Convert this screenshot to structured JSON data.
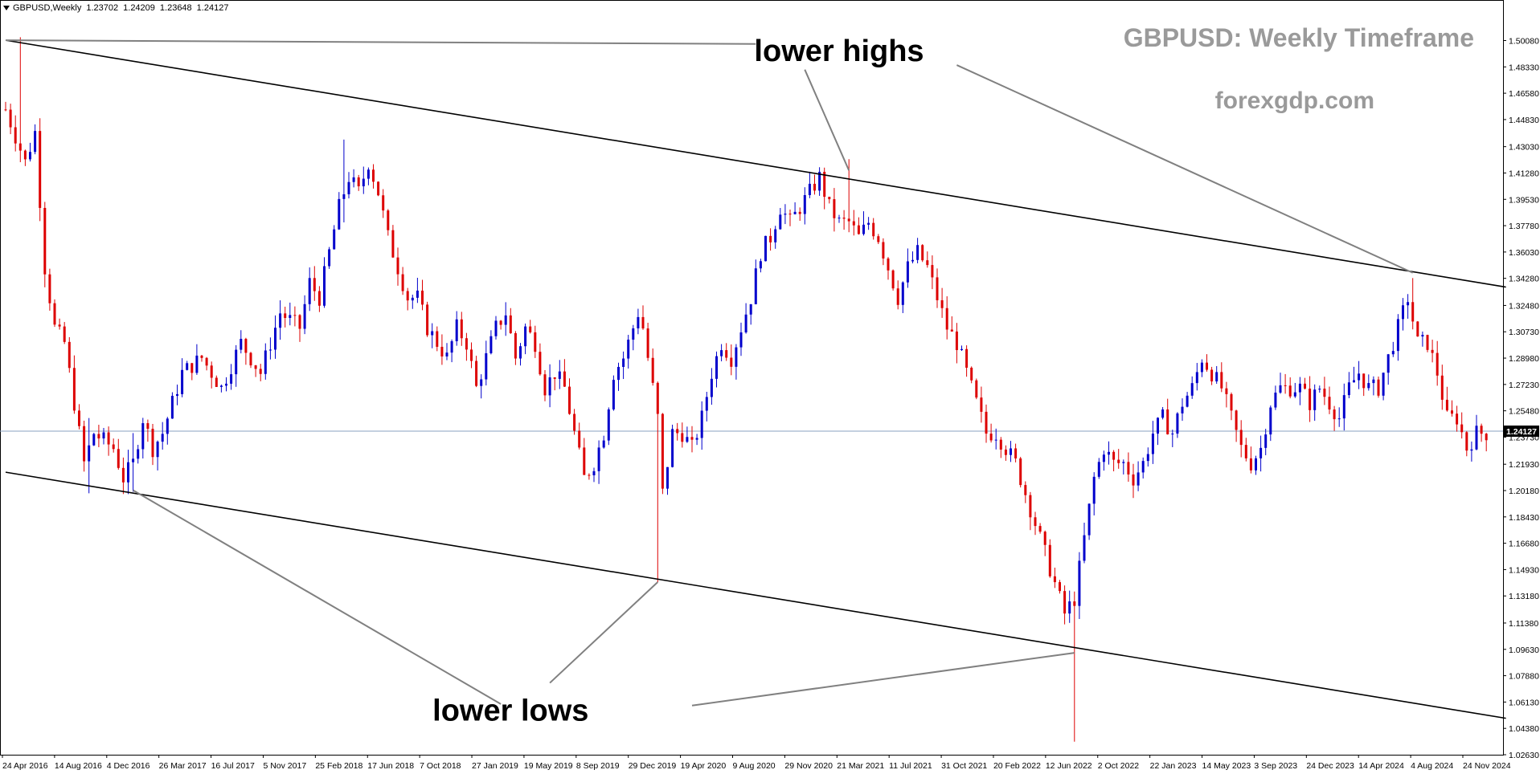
{
  "header": {
    "symbol": "GBPUSD,Weekly",
    "open": "1.23702",
    "high": "1.24209",
    "low": "1.23648",
    "close": "1.24127"
  },
  "chart_data": {
    "type": "candlestick",
    "title": "GBPUSD: Weekly Timeframe",
    "subtitle": "forexgdp.com",
    "ylim": [
      1.0125,
      1.5165
    ],
    "y_ticks": [
      "1.50080",
      "1.48330",
      "1.46580",
      "1.44830",
      "1.43030",
      "1.41280",
      "1.39530",
      "1.37780",
      "1.36030",
      "1.34280",
      "1.32480",
      "1.30730",
      "1.28980",
      "1.27230",
      "1.25480",
      "1.23730",
      "1.21930",
      "1.20180",
      "1.18430",
      "1.16680",
      "1.14930",
      "1.13180",
      "1.11380",
      "1.09630",
      "1.07880",
      "1.06130",
      "1.04380",
      "1.02630"
    ],
    "current_price": "1.24127",
    "x_tick_labels": [
      "24 Apr 2016",
      "14 Aug 2016",
      "4 Dec 2016",
      "26 Mar 2017",
      "16 Jul 2017",
      "5 Nov 2017",
      "25 Feb 2018",
      "17 Jun 2018",
      "7 Oct 2018",
      "27 Jan 2019",
      "19 May 2019",
      "8 Sep 2019",
      "29 Dec 2019",
      "19 Apr 2020",
      "9 Aug 2020",
      "29 Nov 2020",
      "21 Mar 2021",
      "11 Jul 2021",
      "31 Oct 2021",
      "20 Feb 2022",
      "12 Jun 2022",
      "2 Oct 2022",
      "22 Jan 2023",
      "14 May 2023",
      "3 Sep 2023",
      "24 Dec 2023",
      "14 Apr 2024",
      "4 Aug 2024",
      "24 Nov 2024"
    ],
    "price_path": [
      [
        0,
        1.455
      ],
      [
        4,
        1.42
      ],
      [
        6,
        1.44
      ],
      [
        8,
        1.35
      ],
      [
        10,
        1.31
      ],
      [
        12,
        1.3
      ],
      [
        16,
        1.22
      ],
      [
        18,
        1.24
      ],
      [
        22,
        1.23
      ],
      [
        24,
        1.21
      ],
      [
        26,
        1.22
      ],
      [
        28,
        1.25
      ],
      [
        30,
        1.23
      ],
      [
        32,
        1.24
      ],
      [
        34,
        1.26
      ],
      [
        36,
        1.28
      ],
      [
        40,
        1.29
      ],
      [
        44,
        1.27
      ],
      [
        48,
        1.3
      ],
      [
        52,
        1.28
      ],
      [
        56,
        1.32
      ],
      [
        60,
        1.31
      ],
      [
        62,
        1.34
      ],
      [
        64,
        1.33
      ],
      [
        66,
        1.36
      ],
      [
        68,
        1.39
      ],
      [
        70,
        1.41
      ],
      [
        72,
        1.4
      ],
      [
        74,
        1.42
      ],
      [
        76,
        1.4
      ],
      [
        78,
        1.37
      ],
      [
        80,
        1.35
      ],
      [
        82,
        1.33
      ],
      [
        84,
        1.33
      ],
      [
        86,
        1.31
      ],
      [
        88,
        1.3
      ],
      [
        90,
        1.29
      ],
      [
        92,
        1.31
      ],
      [
        94,
        1.3
      ],
      [
        96,
        1.27
      ],
      [
        98,
        1.29
      ],
      [
        100,
        1.31
      ],
      [
        102,
        1.32
      ],
      [
        104,
        1.29
      ],
      [
        106,
        1.31
      ],
      [
        108,
        1.3
      ],
      [
        110,
        1.27
      ],
      [
        112,
        1.28
      ],
      [
        114,
        1.27
      ],
      [
        116,
        1.24
      ],
      [
        118,
        1.21
      ],
      [
        120,
        1.22
      ],
      [
        122,
        1.24
      ],
      [
        124,
        1.28
      ],
      [
        126,
        1.29
      ],
      [
        128,
        1.31
      ],
      [
        129,
        1.32
      ],
      [
        130,
        1.31
      ],
      [
        132,
        1.27
      ],
      [
        133,
        1.25
      ],
      [
        134,
        1.2
      ],
      [
        136,
        1.24
      ],
      [
        138,
        1.24
      ],
      [
        140,
        1.23
      ],
      [
        142,
        1.25
      ],
      [
        144,
        1.28
      ],
      [
        146,
        1.3
      ],
      [
        148,
        1.29
      ],
      [
        150,
        1.31
      ],
      [
        152,
        1.33
      ],
      [
        154,
        1.36
      ],
      [
        156,
        1.37
      ],
      [
        158,
        1.39
      ],
      [
        160,
        1.38
      ],
      [
        162,
        1.39
      ],
      [
        164,
        1.4
      ],
      [
        166,
        1.41
      ],
      [
        168,
        1.39
      ],
      [
        170,
        1.38
      ],
      [
        172,
        1.38
      ],
      [
        174,
        1.37
      ],
      [
        176,
        1.38
      ],
      [
        178,
        1.37
      ],
      [
        180,
        1.35
      ],
      [
        182,
        1.33
      ],
      [
        184,
        1.35
      ],
      [
        186,
        1.36
      ],
      [
        188,
        1.35
      ],
      [
        190,
        1.33
      ],
      [
        192,
        1.31
      ],
      [
        194,
        1.3
      ],
      [
        196,
        1.28
      ],
      [
        198,
        1.26
      ],
      [
        200,
        1.24
      ],
      [
        202,
        1.24
      ],
      [
        204,
        1.23
      ],
      [
        206,
        1.22
      ],
      [
        208,
        1.2
      ],
      [
        210,
        1.18
      ],
      [
        212,
        1.16
      ],
      [
        214,
        1.14
      ],
      [
        216,
        1.12
      ],
      [
        218,
        1.13
      ],
      [
        220,
        1.17
      ],
      [
        222,
        1.21
      ],
      [
        224,
        1.23
      ],
      [
        226,
        1.22
      ],
      [
        228,
        1.22
      ],
      [
        230,
        1.21
      ],
      [
        232,
        1.22
      ],
      [
        234,
        1.24
      ],
      [
        236,
        1.25
      ],
      [
        238,
        1.24
      ],
      [
        240,
        1.26
      ],
      [
        242,
        1.27
      ],
      [
        244,
        1.29
      ],
      [
        246,
        1.28
      ],
      [
        248,
        1.27
      ],
      [
        250,
        1.25
      ],
      [
        252,
        1.23
      ],
      [
        254,
        1.22
      ],
      [
        256,
        1.23
      ],
      [
        258,
        1.26
      ],
      [
        260,
        1.27
      ],
      [
        262,
        1.27
      ],
      [
        264,
        1.27
      ],
      [
        266,
        1.26
      ],
      [
        268,
        1.27
      ],
      [
        270,
        1.26
      ],
      [
        272,
        1.25
      ],
      [
        274,
        1.27
      ],
      [
        276,
        1.28
      ],
      [
        278,
        1.27
      ],
      [
        280,
        1.27
      ],
      [
        282,
        1.29
      ],
      [
        284,
        1.31
      ],
      [
        286,
        1.33
      ],
      [
        288,
        1.3
      ],
      [
        290,
        1.3
      ],
      [
        292,
        1.28
      ],
      [
        294,
        1.25
      ],
      [
        296,
        1.25
      ],
      [
        298,
        1.23
      ],
      [
        300,
        1.24
      ],
      [
        302,
        1.24
      ]
    ],
    "anchor_candles": [
      {
        "week": 3,
        "low": 1.42,
        "high": 1.503
      },
      {
        "week": 17,
        "low": 1.2,
        "high": 1.25
      },
      {
        "week": 26,
        "low": 1.201,
        "high": 1.24
      },
      {
        "week": 69,
        "low": 1.38,
        "high": 1.435
      },
      {
        "week": 133,
        "low": 1.141,
        "high": 1.25
      },
      {
        "week": 172,
        "low": 1.4,
        "high": 1.422
      },
      {
        "week": 218,
        "low": 1.035,
        "high": 1.12
      },
      {
        "week": 287,
        "low": 1.32,
        "high": 1.343
      }
    ],
    "trendlines": [
      {
        "name": "upper",
        "points": [
          [
            0,
            1.501
          ],
          [
            306,
            1.337
          ]
        ]
      },
      {
        "name": "lower",
        "points": [
          [
            0,
            1.214
          ],
          [
            306,
            1.0505
          ]
        ]
      }
    ],
    "annotations": [
      {
        "text": "lower highs",
        "price": 1.4935,
        "week": 170,
        "pointers": [
          [
            163,
            1.4815,
            172,
            1.4145
          ],
          [
            194,
            1.4845,
            287,
            1.3465
          ]
        ],
        "top_line": [
          [
            0,
            1.501
          ],
          [
            153,
            1.4985
          ]
        ]
      },
      {
        "text": "lower lows",
        "price": 1.0555,
        "week": 103,
        "pointers": [
          [
            101,
            1.06,
            26,
            1.202
          ],
          [
            111,
            1.074,
            133,
            1.141
          ],
          [
            140,
            1.059,
            218,
            1.094
          ]
        ]
      }
    ],
    "colors": {
      "up": "#0000cc",
      "down": "#dd0000",
      "trend": "#000000",
      "pointer": "#808080",
      "current_line": "#8aa0c0",
      "title": "#9a9a9a"
    }
  }
}
